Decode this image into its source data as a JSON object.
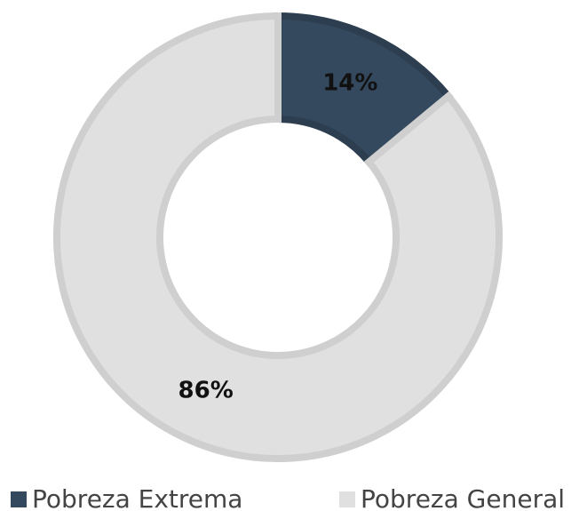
{
  "chart_data": {
    "type": "donut",
    "categories": [
      "Pobreza Extrema",
      "Pobreza General"
    ],
    "values": [
      14,
      86
    ],
    "value_labels": [
      "14%",
      "86%"
    ],
    "colors": [
      "#34495e",
      "#e0e0e0"
    ]
  }
}
